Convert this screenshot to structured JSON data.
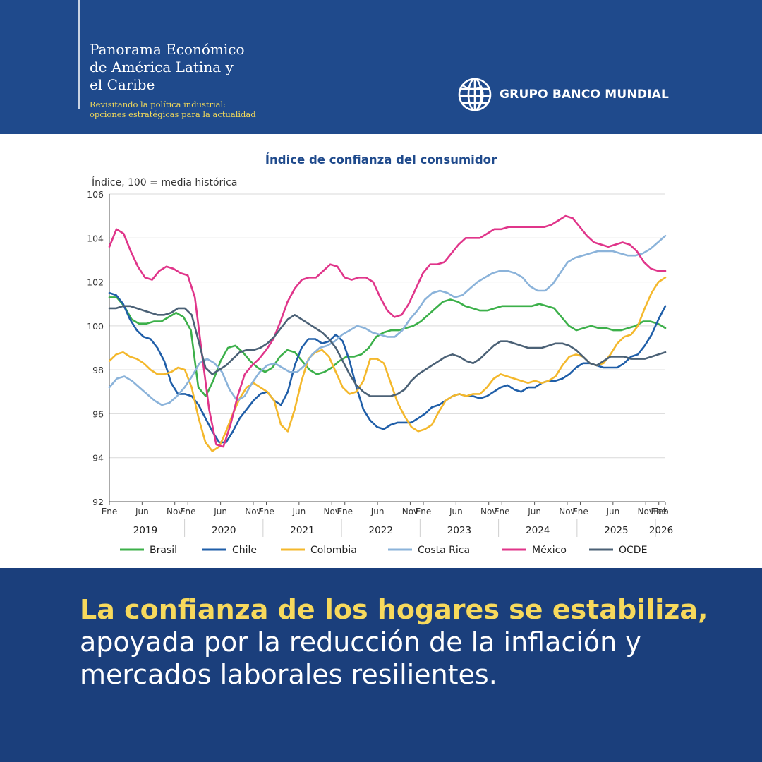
{
  "header": {
    "title_lines": [
      "Panorama Económico",
      "de América Latina y",
      "el Caribe"
    ],
    "subtitle_lines": [
      "Revisitando la política industrial:",
      "opciones estratégicas para la actualidad"
    ],
    "brand": "GRUPO BANCO MUNDIAL",
    "brand_icon": "globe-icon"
  },
  "footer": {
    "headline_bold": "La confianza de los hogares se estabiliza,",
    "headline_lines": [
      "apoyada por la reducción de la inflación y",
      "mercados laborales resilientes."
    ]
  },
  "colors": {
    "header_bg": "#1f4a8c",
    "footer_bg": "#1b3f7c",
    "accent_yellow": "#f7d95c",
    "title_blue": "#1f4a8c"
  },
  "chart_data": {
    "type": "line",
    "title": "Índice de confianza del consumidor",
    "ylabel": "Índice, 100 = media histórica",
    "ylim": [
      92,
      106
    ],
    "yticks": [
      92,
      94,
      96,
      98,
      100,
      102,
      104,
      106
    ],
    "grid": true,
    "legend_position": "bottom",
    "x_start": "2019-01",
    "x_end": "2026-02",
    "tick_months": [
      "Ene",
      "Jun",
      "Nov"
    ],
    "last_tick": "Feb",
    "years": [
      "2019",
      "2020",
      "2021",
      "2022",
      "2023",
      "2024",
      "2025",
      "2026"
    ],
    "series": [
      {
        "name": "Brasil",
        "color": "#3cb04a",
        "values": [
          101.3,
          101.3,
          100.9,
          100.3,
          100.1,
          100.1,
          100.2,
          100.2,
          100.4,
          100.6,
          100.4,
          99.8,
          97.2,
          96.8,
          97.5,
          98.4,
          99.0,
          99.1,
          98.8,
          98.4,
          98.1,
          97.9,
          98.1,
          98.6,
          98.9,
          98.8,
          98.4,
          98.0,
          97.8,
          97.9,
          98.1,
          98.4,
          98.6,
          98.6,
          98.7,
          99.0,
          99.5,
          99.7,
          99.8,
          99.8,
          99.9,
          100.0,
          100.2,
          100.5,
          100.8,
          101.1,
          101.2,
          101.1,
          100.9,
          100.8,
          100.7,
          100.7,
          100.8,
          100.9,
          100.9,
          100.9,
          100.9,
          100.9,
          101.0,
          100.9,
          100.8,
          100.4,
          100.0,
          99.8,
          99.9,
          100.0,
          99.9,
          99.9,
          99.8,
          99.8,
          99.9,
          100.0,
          100.2,
          100.2,
          100.1,
          99.9
        ]
      },
      {
        "name": "Chile",
        "color": "#1f5ea8",
        "values": [
          101.5,
          101.4,
          101.0,
          100.3,
          99.8,
          99.5,
          99.4,
          99.0,
          98.4,
          97.4,
          96.9,
          96.9,
          96.8,
          96.4,
          95.8,
          95.2,
          94.7,
          94.7,
          95.2,
          95.8,
          96.2,
          96.6,
          96.9,
          97.0,
          96.6,
          96.4,
          97.0,
          98.2,
          99.0,
          99.4,
          99.4,
          99.2,
          99.3,
          99.6,
          99.3,
          98.4,
          97.2,
          96.2,
          95.7,
          95.4,
          95.3,
          95.5,
          95.6,
          95.6,
          95.6,
          95.8,
          96.0,
          96.3,
          96.4,
          96.6,
          96.8,
          96.9,
          96.8,
          96.8,
          96.7,
          96.8,
          97.0,
          97.2,
          97.3,
          97.1,
          97.0,
          97.2,
          97.2,
          97.4,
          97.5,
          97.5,
          97.6,
          97.8,
          98.1,
          98.3,
          98.3,
          98.2,
          98.1,
          98.1,
          98.1,
          98.3,
          98.6,
          98.7,
          99.1,
          99.6,
          100.3,
          100.9
        ]
      },
      {
        "name": "Colombia",
        "color": "#f4b82c",
        "values": [
          98.4,
          98.7,
          98.8,
          98.6,
          98.5,
          98.3,
          98.0,
          97.8,
          97.8,
          97.9,
          98.1,
          98.0,
          97.2,
          95.8,
          94.7,
          94.3,
          94.5,
          95.2,
          96.0,
          96.7,
          97.2,
          97.4,
          97.2,
          97.0,
          96.6,
          95.5,
          95.2,
          96.2,
          97.5,
          98.5,
          98.8,
          98.9,
          98.6,
          97.9,
          97.2,
          96.9,
          97.0,
          97.5,
          98.5,
          98.5,
          98.3,
          97.4,
          96.5,
          95.9,
          95.4,
          95.2,
          95.3,
          95.5,
          96.1,
          96.6,
          96.8,
          96.9,
          96.8,
          96.9,
          96.9,
          97.2,
          97.6,
          97.8,
          97.7,
          97.6,
          97.5,
          97.4,
          97.5,
          97.4,
          97.5,
          97.7,
          98.2,
          98.6,
          98.7,
          98.6,
          98.3,
          98.2,
          98.3,
          98.7,
          99.2,
          99.5,
          99.6,
          100.0,
          100.8,
          101.5,
          102.0,
          102.2
        ]
      },
      {
        "name": "Costa Rica",
        "color": "#8bb3da",
        "values": [
          97.2,
          97.6,
          97.7,
          97.5,
          97.2,
          96.9,
          96.6,
          96.4,
          96.5,
          96.8,
          97.2,
          97.7,
          98.3,
          98.5,
          98.3,
          97.9,
          97.1,
          96.6,
          96.8,
          97.4,
          97.9,
          98.2,
          98.3,
          98.1,
          97.9,
          97.9,
          98.2,
          98.7,
          99.0,
          99.1,
          99.3,
          99.6,
          99.8,
          100.0,
          99.9,
          99.7,
          99.6,
          99.5,
          99.5,
          99.8,
          100.3,
          100.7,
          101.2,
          101.5,
          101.6,
          101.5,
          101.3,
          101.4,
          101.7,
          102.0,
          102.2,
          102.4,
          102.5,
          102.5,
          102.4,
          102.2,
          101.8,
          101.6,
          101.6,
          101.9,
          102.4,
          102.9,
          103.1,
          103.2,
          103.3,
          103.4,
          103.4,
          103.4,
          103.3,
          103.2,
          103.2,
          103.3,
          103.5,
          103.8,
          104.1
        ]
      },
      {
        "name": "México",
        "color": "#e0358a",
        "values": [
          103.6,
          104.4,
          104.2,
          103.4,
          102.7,
          102.2,
          102.1,
          102.5,
          102.7,
          102.6,
          102.4,
          102.3,
          101.3,
          98.7,
          96.2,
          94.6,
          94.5,
          95.5,
          96.8,
          97.8,
          98.2,
          98.5,
          98.9,
          99.4,
          100.2,
          101.1,
          101.7,
          102.1,
          102.2,
          102.2,
          102.5,
          102.8,
          102.7,
          102.2,
          102.1,
          102.2,
          102.2,
          102.0,
          101.3,
          100.7,
          100.4,
          100.5,
          101.0,
          101.7,
          102.4,
          102.8,
          102.8,
          102.9,
          103.3,
          103.7,
          104.0,
          104.0,
          104.0,
          104.2,
          104.4,
          104.4,
          104.5,
          104.5,
          104.5,
          104.5,
          104.5,
          104.5,
          104.6,
          104.8,
          105.0,
          104.9,
          104.5,
          104.1,
          103.8,
          103.7,
          103.6,
          103.7,
          103.8,
          103.7,
          103.4,
          102.9,
          102.6,
          102.5,
          102.5
        ]
      },
      {
        "name": "OCDE",
        "color": "#4b6176",
        "values": [
          100.8,
          100.8,
          100.9,
          100.9,
          100.8,
          100.7,
          100.6,
          100.5,
          100.5,
          100.6,
          100.8,
          100.8,
          100.5,
          99.3,
          98.1,
          97.8,
          98.0,
          98.2,
          98.5,
          98.8,
          98.9,
          98.9,
          99.0,
          99.2,
          99.5,
          99.9,
          100.3,
          100.5,
          100.3,
          100.1,
          99.9,
          99.7,
          99.4,
          99.0,
          98.4,
          97.8,
          97.3,
          97.0,
          96.8,
          96.8,
          96.8,
          96.8,
          96.9,
          97.1,
          97.5,
          97.8,
          98.0,
          98.2,
          98.4,
          98.6,
          98.7,
          98.6,
          98.4,
          98.3,
          98.5,
          98.8,
          99.1,
          99.3,
          99.3,
          99.2,
          99.1,
          99.0,
          99.0,
          99.0,
          99.1,
          99.2,
          99.2,
          99.1,
          98.9,
          98.6,
          98.3,
          98.2,
          98.4,
          98.6,
          98.6,
          98.6,
          98.5,
          98.5,
          98.5,
          98.6,
          98.7,
          98.8
        ]
      }
    ]
  }
}
